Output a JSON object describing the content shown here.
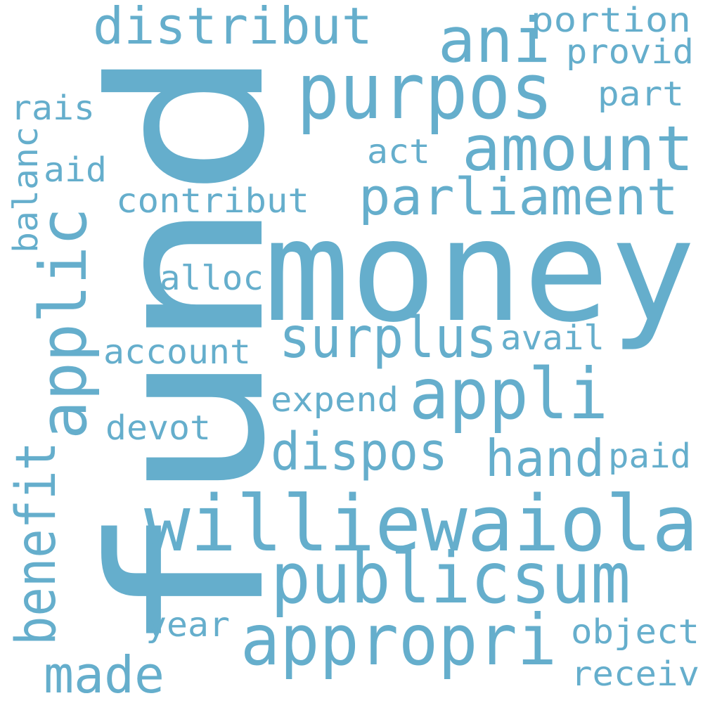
{
  "word_color": "#65aecc",
  "background_color": "#ffffff",
  "words": [
    {
      "text": "fund",
      "orientation": "vertical"
    },
    {
      "text": "money",
      "orientation": "horizontal"
    },
    {
      "text": "purpos",
      "orientation": "horizontal"
    },
    {
      "text": "williewaiola",
      "orientation": "horizontal"
    },
    {
      "text": "publicsum",
      "orientation": "horizontal"
    },
    {
      "text": "appropri",
      "orientation": "horizontal"
    },
    {
      "text": "applic",
      "orientation": "vertical"
    },
    {
      "text": "appli",
      "orientation": "horizontal"
    },
    {
      "text": "amount",
      "orientation": "horizontal"
    },
    {
      "text": "parliament",
      "orientation": "horizontal"
    },
    {
      "text": "distribut",
      "orientation": "horizontal"
    },
    {
      "text": "ani",
      "orientation": "horizontal"
    },
    {
      "text": "surplus",
      "orientation": "horizontal"
    },
    {
      "text": "dispos",
      "orientation": "horizontal"
    },
    {
      "text": "hand",
      "orientation": "horizontal"
    },
    {
      "text": "benefit",
      "orientation": "vertical"
    },
    {
      "text": "made",
      "orientation": "horizontal"
    },
    {
      "text": "portion",
      "orientation": "horizontal"
    },
    {
      "text": "provid",
      "orientation": "horizontal"
    },
    {
      "text": "part",
      "orientation": "horizontal"
    },
    {
      "text": "rais",
      "orientation": "horizontal"
    },
    {
      "text": "balanc",
      "orientation": "vertical"
    },
    {
      "text": "aid",
      "orientation": "horizontal"
    },
    {
      "text": "act",
      "orientation": "horizontal"
    },
    {
      "text": "contribut",
      "orientation": "horizontal"
    },
    {
      "text": "alloc",
      "orientation": "horizontal"
    },
    {
      "text": "account",
      "orientation": "horizontal"
    },
    {
      "text": "avail",
      "orientation": "horizontal"
    },
    {
      "text": "expend",
      "orientation": "horizontal"
    },
    {
      "text": "devot",
      "orientation": "horizontal"
    },
    {
      "text": "paid",
      "orientation": "horizontal"
    },
    {
      "text": "year",
      "orientation": "horizontal"
    },
    {
      "text": "object",
      "orientation": "horizontal"
    },
    {
      "text": "receiv",
      "orientation": "horizontal"
    }
  ]
}
